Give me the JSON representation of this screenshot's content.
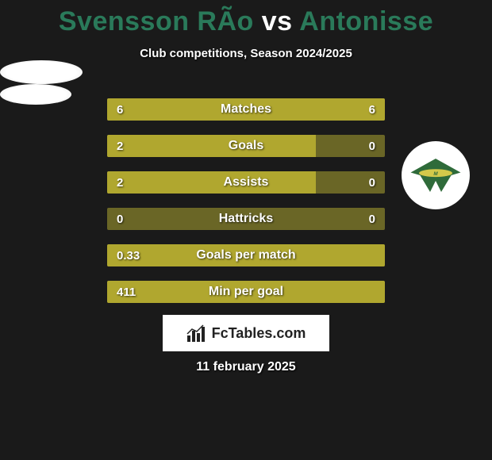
{
  "title": {
    "player1": "Svensson RÃo",
    "vs": " vs ",
    "player2": "Antonisse",
    "color_player": "#2a7a5a",
    "color_vs": "#ffffff"
  },
  "subtitle": "Club competitions, Season 2024/2025",
  "stats": {
    "track_color": "#6a6626",
    "fill_color": "#b0a72f",
    "text_color": "#ffffff",
    "rows": [
      {
        "label": "Matches",
        "left": "6",
        "right": "6",
        "left_pct": 50,
        "right_pct": 50
      },
      {
        "label": "Goals",
        "left": "2",
        "right": "0",
        "left_pct": 75,
        "right_pct": 0
      },
      {
        "label": "Assists",
        "left": "2",
        "right": "0",
        "left_pct": 75,
        "right_pct": 0
      },
      {
        "label": "Hattricks",
        "left": "0",
        "right": "0",
        "left_pct": 0,
        "right_pct": 0
      },
      {
        "label": "Goals per match",
        "left": "0.33",
        "right": "",
        "left_pct": 100,
        "right_pct": 0
      },
      {
        "label": "Min per goal",
        "left": "411",
        "right": "",
        "left_pct": 100,
        "right_pct": 0
      }
    ]
  },
  "brand": "FcTables.com",
  "date": "11 february 2025",
  "badge": {
    "bg": "#ffffff",
    "wing_color": "#2f6b3a",
    "band_color": "#d4c94a"
  },
  "background_color": "#1a1a1a"
}
